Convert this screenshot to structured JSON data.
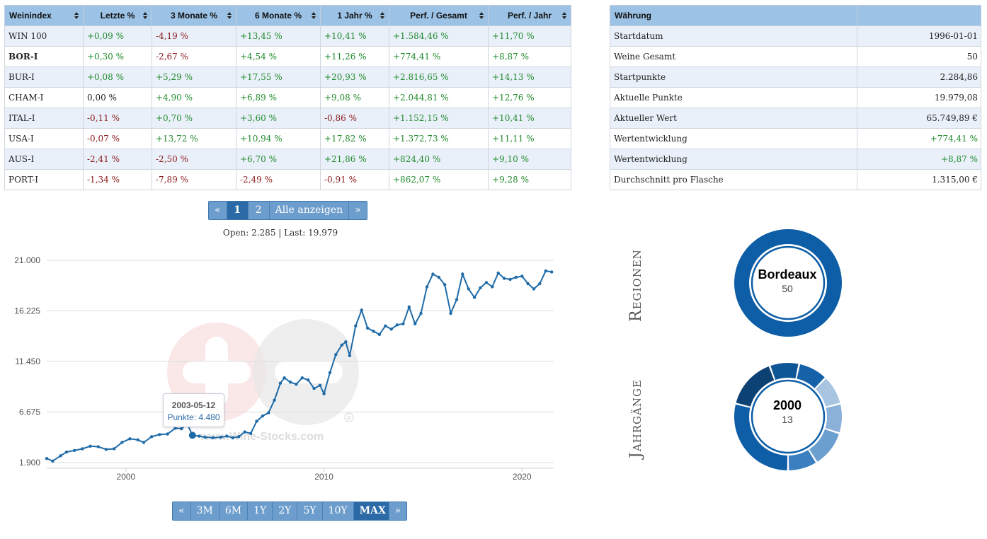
{
  "index_table": {
    "headers": [
      "Weinindex",
      "Letzte %",
      "3 Monate %",
      "6 Monate %",
      "1 Jahr %",
      "Perf. / Gesamt",
      "Perf. / Jahr"
    ],
    "rows": [
      {
        "name": "WIN 100",
        "cells": [
          "+0,09 %",
          "-4,19 %",
          "+13,45 %",
          "+10,41 %",
          "+1.584,46 %",
          "+11,70 %"
        ]
      },
      {
        "name": "BOR-I",
        "cells": [
          "+0,30 %",
          "-2,67 %",
          "+4,54 %",
          "+11,26 %",
          "+774,41 %",
          "+8,87 %"
        ]
      },
      {
        "name": "BUR-I",
        "cells": [
          "+0,08 %",
          "+5,29 %",
          "+17,55 %",
          "+20,93 %",
          "+2.816,65 %",
          "+14,13 %"
        ]
      },
      {
        "name": "CHAM-I",
        "cells": [
          "0,00 %",
          "+4,90 %",
          "+6,89 %",
          "+9,08 %",
          "+2.044,81 %",
          "+12,76 %"
        ]
      },
      {
        "name": "ITAL-I",
        "cells": [
          "-0,11 %",
          "+0,70 %",
          "+3,60 %",
          "-0,86 %",
          "+1.152,15 %",
          "+10,41 %"
        ]
      },
      {
        "name": "USA-I",
        "cells": [
          "-0,07 %",
          "+13,72 %",
          "+10,94 %",
          "+17,82 %",
          "+1.372,73 %",
          "+11,11 %"
        ]
      },
      {
        "name": "AUS-I",
        "cells": [
          "-2,41 %",
          "-2,50 %",
          "+6,70 %",
          "+21,86 %",
          "+824,40 %",
          "+9,10 %"
        ]
      },
      {
        "name": "PORT-I",
        "cells": [
          "-1,34 %",
          "-7,89 %",
          "-2,49 %",
          "-0,91 %",
          "+862,07 %",
          "+9,28 %"
        ]
      }
    ]
  },
  "info_table": {
    "header": "Währung",
    "rows": [
      {
        "label": "Startdatum",
        "value": "1996-01-01"
      },
      {
        "label": "Weine Gesamt",
        "value": "50"
      },
      {
        "label": "Startpunkte",
        "value": "2.284,86"
      },
      {
        "label": "Aktuelle Punkte",
        "value": "19.979,08"
      },
      {
        "label": "Aktueller Wert",
        "value": "65.749,89 €"
      },
      {
        "label": "Wertentwicklung",
        "value": "+774,41 %"
      },
      {
        "label": "Wertentwicklung",
        "value": "+8,87 %"
      },
      {
        "label": "Durchschnitt pro Flasche",
        "value": "1.315,00 €"
      }
    ]
  },
  "pager": {
    "prev": "«",
    "pages": [
      "1",
      "2"
    ],
    "active": "1",
    "all": "Alle anzeigen",
    "next": "»"
  },
  "open_last": {
    "open_label": "Open:",
    "open": "2.285",
    "sep": "|",
    "last_label": "Last:",
    "last": "19.979"
  },
  "range_buttons": {
    "prev": "«",
    "items": [
      "3M",
      "6M",
      "1Y",
      "2Y",
      "5Y",
      "10Y",
      "MAX"
    ],
    "active": "MAX",
    "next": "»"
  },
  "tooltip": {
    "date": "2003-05-12",
    "label": "Punkte:",
    "value": "4.480"
  },
  "watermark": "www.Wine-Stocks.com",
  "colors": {
    "header": "#9cc2e5",
    "alt_row": "#e9f0f9",
    "positive": "#218a2c",
    "negative": "#8a1a1a",
    "line": "#1f6ba8",
    "donut_dark": "#0d5ea6",
    "pager": "#6d9dcd"
  },
  "chart_data": {
    "type": "line",
    "yticks": [
      "21.000",
      "16.225",
      "11.450",
      "6.675",
      "1.900"
    ],
    "xticks": [
      "2000",
      "2010",
      "2020"
    ],
    "ylim": [
      1900,
      21000
    ],
    "xlim": [
      1996,
      2021.6
    ],
    "series": [
      {
        "values": [
          [
            1996.0,
            2285
          ],
          [
            1996.3,
            2050
          ],
          [
            1996.7,
            2550
          ],
          [
            1997.0,
            2900
          ],
          [
            1997.4,
            3050
          ],
          [
            1997.8,
            3200
          ],
          [
            1998.2,
            3450
          ],
          [
            1998.6,
            3400
          ],
          [
            1999.0,
            3150
          ],
          [
            1999.4,
            3200
          ],
          [
            1999.8,
            3800
          ],
          [
            2000.2,
            4150
          ],
          [
            2000.6,
            4050
          ],
          [
            2000.9,
            3800
          ],
          [
            2001.3,
            4350
          ],
          [
            2001.7,
            4550
          ],
          [
            2002.1,
            4600
          ],
          [
            2002.5,
            5150
          ],
          [
            2002.8,
            5100
          ],
          [
            2003.1,
            5550
          ],
          [
            2003.36,
            4480
          ],
          [
            2003.7,
            4400
          ],
          [
            2004.0,
            4300
          ],
          [
            2004.4,
            4250
          ],
          [
            2004.8,
            4300
          ],
          [
            2005.1,
            4400
          ],
          [
            2005.4,
            4250
          ],
          [
            2005.7,
            4350
          ],
          [
            2006.0,
            4800
          ],
          [
            2006.3,
            4650
          ],
          [
            2006.6,
            5800
          ],
          [
            2006.9,
            6300
          ],
          [
            2007.2,
            6600
          ],
          [
            2007.5,
            7800
          ],
          [
            2007.8,
            9400
          ],
          [
            2008.0,
            9900
          ],
          [
            2008.3,
            9500
          ],
          [
            2008.6,
            9300
          ],
          [
            2008.9,
            9900
          ],
          [
            2009.2,
            9700
          ],
          [
            2009.5,
            8900
          ],
          [
            2009.8,
            9200
          ],
          [
            2010.0,
            8400
          ],
          [
            2010.3,
            10400
          ],
          [
            2010.6,
            12100
          ],
          [
            2010.9,
            13000
          ],
          [
            2011.1,
            13300
          ],
          [
            2011.3,
            12000
          ],
          [
            2011.6,
            14800
          ],
          [
            2011.9,
            16300
          ],
          [
            2012.2,
            14600
          ],
          [
            2012.5,
            14300
          ],
          [
            2012.8,
            14000
          ],
          [
            2013.1,
            14800
          ],
          [
            2013.4,
            14500
          ],
          [
            2013.7,
            14900
          ],
          [
            2014.0,
            15000
          ],
          [
            2014.3,
            16600
          ],
          [
            2014.6,
            15000
          ],
          [
            2014.9,
            16000
          ],
          [
            2015.2,
            18500
          ],
          [
            2015.5,
            19700
          ],
          [
            2015.8,
            19400
          ],
          [
            2016.1,
            18700
          ],
          [
            2016.4,
            16000
          ],
          [
            2016.7,
            17300
          ],
          [
            2017.0,
            19700
          ],
          [
            2017.3,
            18300
          ],
          [
            2017.6,
            17500
          ],
          [
            2017.9,
            18400
          ],
          [
            2018.2,
            18900
          ],
          [
            2018.5,
            18500
          ],
          [
            2018.8,
            19800
          ],
          [
            2019.1,
            19300
          ],
          [
            2019.4,
            19200
          ],
          [
            2019.7,
            19400
          ],
          [
            2020.0,
            19500
          ],
          [
            2020.3,
            18800
          ],
          [
            2020.6,
            18300
          ],
          [
            2020.9,
            18800
          ],
          [
            2021.2,
            20000
          ],
          [
            2021.5,
            19900
          ]
        ]
      }
    ]
  },
  "donut_regions": {
    "title": "Regionen",
    "center_name": "Bordeaux",
    "center_count": "50",
    "segments": [
      {
        "value": 50,
        "color": "#0d5ea6"
      }
    ]
  },
  "donut_years": {
    "title": "Jahrgänge",
    "center_name": "2000",
    "center_count": "13",
    "segments": [
      {
        "value": 13,
        "color": "#0d5ea6"
      },
      {
        "value": 7,
        "color": "#0c4173"
      },
      {
        "value": 4,
        "color": "#0e5796"
      },
      {
        "value": 4,
        "color": "#1662a8"
      },
      {
        "value": 4,
        "color": "#a7c4e0"
      },
      {
        "value": 4,
        "color": "#8cb1d8"
      },
      {
        "value": 5,
        "color": "#6b9fd0"
      },
      {
        "value": 4,
        "color": "#3c7fc0"
      }
    ]
  }
}
